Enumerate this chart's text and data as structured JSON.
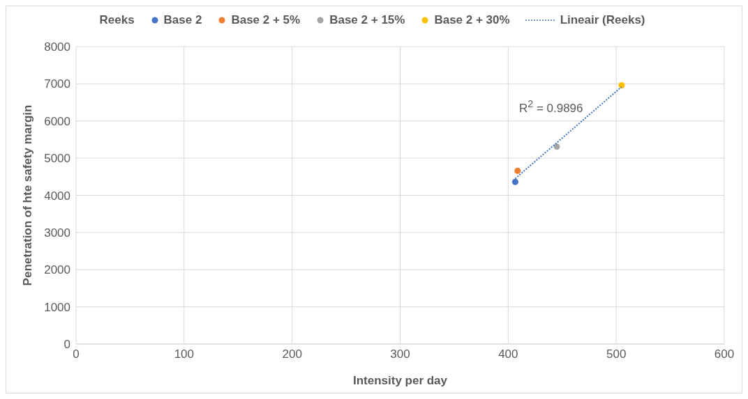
{
  "chart_data": {
    "type": "scatter",
    "xlabel": "Intensity per day",
    "ylabel": "Penetration of hte safety margin",
    "legend_title": "Reeks",
    "legend": "top",
    "grid": true,
    "marker": "circle",
    "xlim": [
      0,
      600
    ],
    "xticks": [
      0,
      100,
      200,
      300,
      400,
      500,
      600
    ],
    "ylim": [
      0,
      8000
    ],
    "yticks": [
      0,
      1000,
      2000,
      3000,
      4000,
      5000,
      6000,
      7000,
      8000
    ],
    "series": [
      {
        "name": "Base 2",
        "color": "#4472c4",
        "x": [
          406.5
        ],
        "values": [
          4360
        ]
      },
      {
        "name": "Base 2 + 5%",
        "color": "#ed7d31",
        "x": [
          408.7
        ],
        "values": [
          4660
        ]
      },
      {
        "name": "Base 2 + 15%",
        "color": "#a5a5a5",
        "x": [
          445
        ],
        "values": [
          5310
        ]
      },
      {
        "name": "Base 2 + 30%",
        "color": "#ffc000",
        "x": [
          505
        ],
        "values": [
          6960
        ]
      },
      {
        "name": "Lineair (Reeks)",
        "type": "line",
        "line_style": "dotted",
        "marker": "none",
        "color": "#4472c4",
        "x": [
          406.5,
          505
        ],
        "values": [
          4450,
          6920
        ]
      }
    ],
    "annotations": [
      "R$^{2}$ = 0.9896"
    ]
  }
}
